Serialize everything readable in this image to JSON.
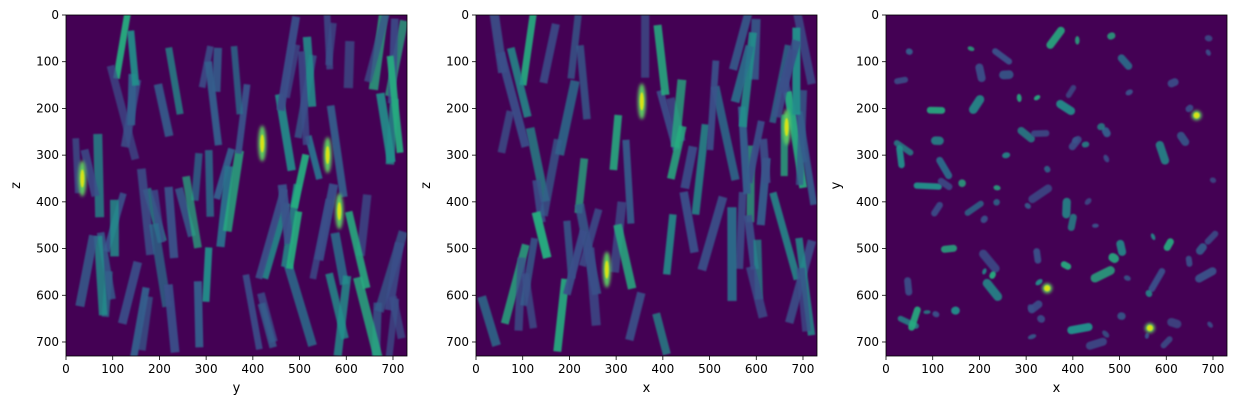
{
  "chart_data": [
    {
      "type": "heatmap",
      "title": "",
      "xlabel": "y",
      "ylabel": "z",
      "xlim": [
        0,
        730
      ],
      "ylim": [
        730,
        0
      ],
      "xticks": [
        0,
        100,
        200,
        300,
        400,
        500,
        600,
        700
      ],
      "yticks": [
        0,
        100,
        200,
        300,
        400,
        500,
        600,
        700
      ],
      "colormap": "viridis",
      "background": "#440154",
      "feature_type": "rods",
      "feature_count": 80,
      "bright_spots": [
        {
          "x": 420,
          "y": 275
        },
        {
          "x": 560,
          "y": 300
        },
        {
          "x": 585,
          "y": 420
        },
        {
          "x": 35,
          "y": 350
        }
      ]
    },
    {
      "type": "heatmap",
      "title": "",
      "xlabel": "x",
      "ylabel": "z",
      "xlim": [
        0,
        730
      ],
      "ylim": [
        730,
        0
      ],
      "xticks": [
        0,
        100,
        200,
        300,
        400,
        500,
        600,
        700
      ],
      "yticks": [
        0,
        100,
        200,
        300,
        400,
        500,
        600,
        700
      ],
      "colormap": "viridis",
      "background": "#440154",
      "feature_type": "rods",
      "feature_count": 72,
      "bright_spots": [
        {
          "x": 355,
          "y": 185
        },
        {
          "x": 665,
          "y": 240
        },
        {
          "x": 280,
          "y": 545
        }
      ]
    },
    {
      "type": "heatmap",
      "title": "",
      "xlabel": "x",
      "ylabel": "y",
      "xlim": [
        0,
        730
      ],
      "ylim": [
        730,
        0
      ],
      "xticks": [
        0,
        100,
        200,
        300,
        400,
        500,
        600,
        700
      ],
      "yticks": [
        0,
        100,
        200,
        300,
        400,
        500,
        600,
        700
      ],
      "colormap": "viridis",
      "background": "#440154",
      "feature_type": "cross-sections",
      "feature_count": 90,
      "bright_spots": [
        {
          "x": 665,
          "y": 215
        },
        {
          "x": 345,
          "y": 585
        },
        {
          "x": 565,
          "y": 670
        }
      ]
    }
  ]
}
